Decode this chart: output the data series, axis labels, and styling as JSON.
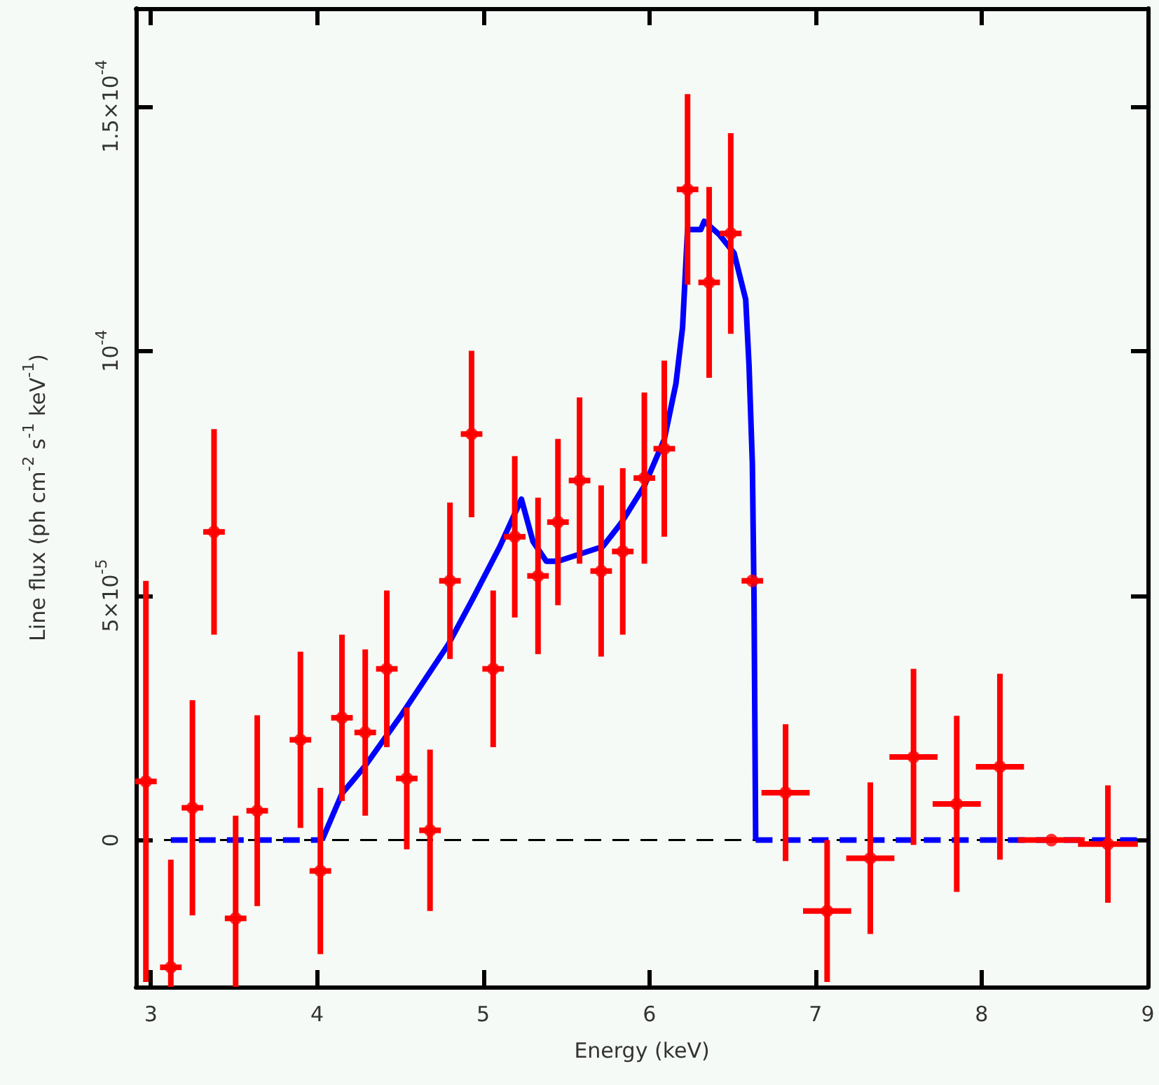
{
  "chart_data": {
    "type": "scatter",
    "xlabel": "Energy (keV)",
    "ylabel": "Line flux (ph cm$^{-2}$ s$^{-1}$ keV$^{-1}$)",
    "xlim": [
      2.91,
      9
    ],
    "xticks": [
      3,
      4,
      5,
      6,
      7,
      8,
      9
    ],
    "ylim": [
      -3e-05,
      0.00017
    ],
    "yticks": [
      {
        "value": 0,
        "label": "0"
      },
      {
        "value": 5e-05,
        "label": "5×10$^{-5}$"
      },
      {
        "value": 0.0001,
        "label": "10$^{-4}$"
      },
      {
        "value": 0.00015,
        "label": "1.5×10$^{-4}$"
      }
    ],
    "grid": false,
    "ref_lines": [
      {
        "axis": "y",
        "value": 0,
        "color": "#000000",
        "line_style": "dashed"
      }
    ],
    "series": [
      {
        "color": "#ff0000",
        "marker": "circle",
        "x": [
          2.97,
          3.12,
          3.25,
          3.38,
          3.51,
          3.64,
          3.9,
          4.02,
          4.15,
          4.29,
          4.42,
          4.54,
          4.68,
          4.8,
          4.93,
          5.06,
          5.19,
          5.33,
          5.45,
          5.58,
          5.71,
          5.84,
          5.97,
          6.09,
          6.23,
          6.36,
          6.49,
          6.62,
          6.82,
          7.07,
          7.33,
          7.59,
          7.85,
          8.11,
          8.42,
          8.76
        ],
        "values": [
          1.2e-05,
          -2.6e-05,
          6.6e-06,
          6.3e-05,
          -1.6e-05,
          6e-06,
          2.05e-05,
          -6.3e-06,
          2.5e-05,
          2.2e-05,
          3.5e-05,
          1.26e-05,
          2e-06,
          5.3e-05,
          8.3e-05,
          3.5e-05,
          6.2e-05,
          5.4e-05,
          6.5e-05,
          7.35e-05,
          5.5e-05,
          5.9e-05,
          7.4e-05,
          8e-05,
          0.000133,
          0.000114,
          0.000124,
          5.3e-05,
          9.7e-06,
          -1.45e-05,
          -3.7e-06,
          1.7e-05,
          7.4e-06,
          1.5e-05,
          0,
          -8e-07
        ],
        "errors": [
          4.1e-05,
          [
            -3e-05,
            -4e-06
          ],
          2.2e-05,
          2.1e-05,
          [
            -3e-05,
            5e-06
          ],
          1.95e-05,
          1.8e-05,
          1.7e-05,
          1.7e-05,
          1.7e-05,
          1.6e-05,
          1.45e-05,
          1.65e-05,
          1.6e-05,
          1.7e-05,
          1.6e-05,
          1.65e-05,
          1.6e-05,
          1.7e-05,
          1.7e-05,
          1.75e-05,
          1.7e-05,
          1.75e-05,
          1.8e-05,
          1.95e-05,
          1.95e-05,
          2.05e-05,
          null,
          1.4e-05,
          1.45e-05,
          1.55e-05,
          1.8e-05,
          1.8e-05,
          1.9e-05,
          null,
          1.2e-05
        ],
        "xerrors": [
          0.065,
          0.065,
          0.065,
          0.065,
          0.065,
          0.065,
          0.065,
          0.065,
          0.065,
          0.065,
          0.065,
          0.065,
          0.065,
          0.065,
          0.065,
          0.065,
          0.065,
          0.065,
          0.065,
          0.065,
          0.065,
          0.065,
          0.065,
          0.065,
          0.065,
          0.065,
          0.065,
          0.065,
          0.145,
          0.145,
          0.145,
          0.145,
          0.145,
          0.145,
          0.2,
          0.18
        ]
      },
      {
        "type": "line",
        "color": "#0000ff",
        "marker": "none",
        "line_style": "dashed",
        "x": [
          3.12,
          4.03
        ],
        "values": [
          0,
          0
        ]
      },
      {
        "type": "line",
        "color": "#0000ff",
        "marker": "none",
        "line_style": "solid",
        "x": [
          4.03,
          4.15,
          4.29,
          4.51,
          4.79,
          4.94,
          5.1,
          5.23,
          5.3,
          5.38,
          5.45,
          5.72,
          5.83,
          5.97,
          6.09,
          6.16,
          6.2,
          6.23,
          6.31,
          6.33,
          6.42,
          6.51,
          6.58,
          6.6,
          6.62,
          6.63,
          6.64
        ],
        "values": [
          0,
          9.5e-06,
          1.52e-05,
          2.57e-05,
          4e-05,
          4.95e-05,
          6e-05,
          6.97e-05,
          6.1e-05,
          5.7e-05,
          5.7e-05,
          6e-05,
          6.48e-05,
          7.24e-05,
          8.19e-05,
          9.33e-05,
          0.0001048,
          0.0001248,
          0.0001248,
          0.0001265,
          0.0001238,
          0.00012,
          0.0001105,
          9.7e-05,
          7.7e-05,
          4.95e-05,
          0
        ]
      },
      {
        "type": "line",
        "color": "#0000ff",
        "marker": "none",
        "line_style": "dashed",
        "x": [
          6.64,
          9.0
        ],
        "values": [
          0,
          0
        ]
      }
    ]
  }
}
